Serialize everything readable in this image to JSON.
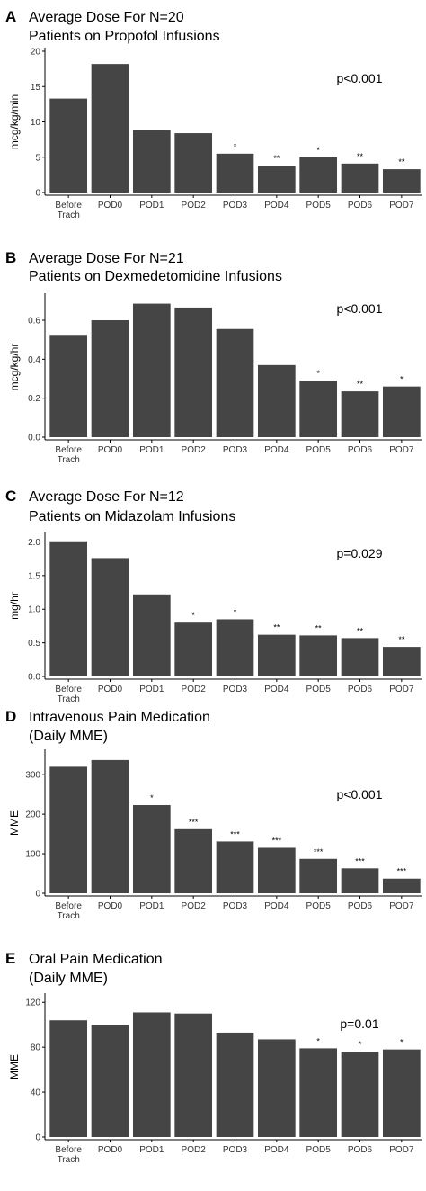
{
  "chart_data": [
    {
      "type": "bar",
      "panel": "A",
      "title_lines": [
        "Average Dose For N=20",
        "Patients on Propofol Infusions"
      ],
      "ylabel": "mcg/kg/min",
      "categories": [
        "Before Trach",
        "POD0",
        "POD1",
        "POD2",
        "POD3",
        "POD4",
        "POD5",
        "POD6",
        "POD7"
      ],
      "values": [
        13.3,
        18.2,
        8.9,
        8.4,
        5.5,
        3.8,
        5.0,
        4.1,
        3.3
      ],
      "significance": [
        "",
        "",
        "",
        "",
        "*",
        "**",
        "*",
        "**",
        "**"
      ],
      "yticks": [
        0,
        5,
        10,
        15,
        20
      ],
      "ylim": [
        0,
        20
      ],
      "pvalue": "p<0.001"
    },
    {
      "type": "bar",
      "panel": "B",
      "title_lines": [
        "Average Dose For N=21",
        "Patients on Dexmedetomidine Infusions"
      ],
      "ylabel": "mcg/kg/hr",
      "categories": [
        "Before Trach",
        "POD0",
        "POD1",
        "POD2",
        "POD3",
        "POD4",
        "POD5",
        "POD6",
        "POD7"
      ],
      "values": [
        0.525,
        0.6,
        0.685,
        0.665,
        0.555,
        0.37,
        0.29,
        0.235,
        0.26
      ],
      "significance": [
        "",
        "",
        "",
        "",
        "",
        "",
        "*",
        "**",
        "*"
      ],
      "yticks": [
        "0.0",
        "0.2",
        "0.4",
        "0.6"
      ],
      "ylim": [
        0,
        0.72
      ],
      "pvalue": "p<0.001"
    },
    {
      "type": "bar",
      "panel": "C",
      "title_lines": [
        "Average Dose For N=12",
        "Patients on Midazolam Infusions"
      ],
      "ylabel": "mg/hr",
      "categories": [
        "Before Trach",
        "POD0",
        "POD1",
        "POD2",
        "POD3",
        "POD4",
        "POD5",
        "POD6",
        "POD7"
      ],
      "values": [
        2.01,
        1.76,
        1.22,
        0.8,
        0.85,
        0.62,
        0.61,
        0.57,
        0.44
      ],
      "significance": [
        "",
        "",
        "",
        "*",
        "*",
        "**",
        "**",
        "**",
        "**"
      ],
      "yticks": [
        "0.0",
        "0.5",
        "1.0",
        "1.5",
        "2.0"
      ],
      "ylim": [
        0,
        2.1
      ],
      "pvalue": "p=0.029"
    },
    {
      "type": "bar",
      "panel": "D",
      "title_lines": [
        "Intravenous Pain Medication",
        "(Daily MME)"
      ],
      "ylabel": "MME",
      "categories": [
        "Before Trach",
        "POD0",
        "POD1",
        "POD2",
        "POD3",
        "POD4",
        "POD5",
        "POD6",
        "POD7"
      ],
      "values": [
        320,
        337,
        223,
        162,
        131,
        115,
        87,
        63,
        37
      ],
      "significance": [
        "",
        "",
        "*",
        "***",
        "***",
        "***",
        "***",
        "***",
        "***"
      ],
      "yticks": [
        0,
        100,
        200,
        300
      ],
      "ylim": [
        0,
        355
      ],
      "pvalue": "p<0.001"
    },
    {
      "type": "bar",
      "panel": "E",
      "title_lines": [
        "Oral Pain Medication",
        "(Daily MME)"
      ],
      "ylabel": "MME",
      "categories": [
        "Before Trach",
        "POD0",
        "POD1",
        "POD2",
        "POD3",
        "POD4",
        "POD5",
        "POD6",
        "POD7"
      ],
      "values": [
        104,
        100,
        111,
        110,
        93,
        87,
        79,
        76,
        78
      ],
      "significance": [
        "",
        "",
        "",
        "",
        "",
        "",
        "*",
        "*",
        "*"
      ],
      "yticks": [
        0,
        40,
        80,
        120
      ],
      "ylim": [
        0,
        125
      ],
      "pvalue": "p=0.01"
    }
  ]
}
